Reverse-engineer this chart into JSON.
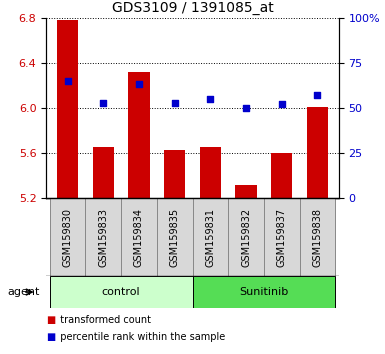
{
  "title": "GDS3109 / 1391085_at",
  "samples": [
    "GSM159830",
    "GSM159833",
    "GSM159834",
    "GSM159835",
    "GSM159831",
    "GSM159832",
    "GSM159837",
    "GSM159838"
  ],
  "red_values": [
    6.78,
    5.65,
    6.32,
    5.63,
    5.65,
    5.32,
    5.6,
    6.01
  ],
  "blue_values": [
    65,
    53,
    63,
    53,
    55,
    50,
    52,
    57
  ],
  "ylim_left": [
    5.2,
    6.8
  ],
  "ylim_right": [
    0,
    100
  ],
  "yticks_left": [
    5.2,
    5.6,
    6.0,
    6.4,
    6.8
  ],
  "yticks_right": [
    0,
    25,
    50,
    75,
    100
  ],
  "ytick_labels_right": [
    "0",
    "25",
    "50",
    "75",
    "100%"
  ],
  "bar_color": "#cc0000",
  "dot_color": "#0000cc",
  "groups": [
    {
      "label": "control",
      "indices": [
        0,
        1,
        2,
        3
      ],
      "color": "#ccffcc"
    },
    {
      "label": "Sunitinib",
      "indices": [
        4,
        5,
        6,
        7
      ],
      "color": "#55dd55"
    }
  ],
  "legend_items": [
    {
      "label": "transformed count",
      "color": "#cc0000"
    },
    {
      "label": "percentile rank within the sample",
      "color": "#0000cc"
    }
  ],
  "agent_label": "agent",
  "left_tick_color": "#cc0000",
  "right_tick_color": "#0000cc",
  "bar_bottom": 5.2,
  "bar_width": 0.6,
  "sample_box_color": "#d8d8d8",
  "sample_box_edge": "#888888"
}
